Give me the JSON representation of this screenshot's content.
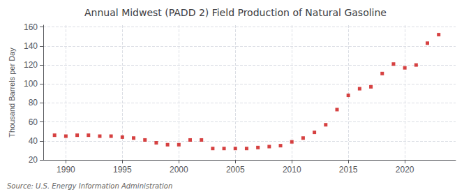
{
  "chart_data": {
    "type": "scatter",
    "title": "Annual Midwest (PADD 2) Field Production of Natural Gasoline",
    "ylabel": "Thousand Barrels per Day",
    "annotations": [
      "Source: U.S. Energy Information Administration"
    ],
    "x": [
      1989,
      1990,
      1991,
      1992,
      1993,
      1994,
      1995,
      1996,
      1997,
      1998,
      1999,
      2000,
      2001,
      2002,
      2003,
      2004,
      2005,
      2006,
      2007,
      2008,
      2009,
      2010,
      2011,
      2012,
      2013,
      2014,
      2015,
      2016,
      2017,
      2018,
      2019,
      2020,
      2021,
      2022,
      2023
    ],
    "values": [
      46,
      45,
      46,
      46,
      45,
      45,
      44,
      43,
      41,
      38,
      36,
      36,
      41,
      41,
      32,
      32,
      32,
      32,
      33,
      34,
      35,
      39,
      43,
      49,
      57,
      73,
      88,
      95,
      97,
      111,
      121,
      117,
      120,
      143,
      152
    ],
    "color": "#cc1111",
    "marker": "square",
    "xlim": [
      1988.0,
      2024.5
    ],
    "ylim": [
      20,
      162
    ],
    "xticks": [
      1990,
      1995,
      2000,
      2005,
      2010,
      2015,
      2020
    ],
    "yticks": [
      20,
      40,
      60,
      80,
      100,
      120,
      140,
      160
    ],
    "grid": true
  }
}
